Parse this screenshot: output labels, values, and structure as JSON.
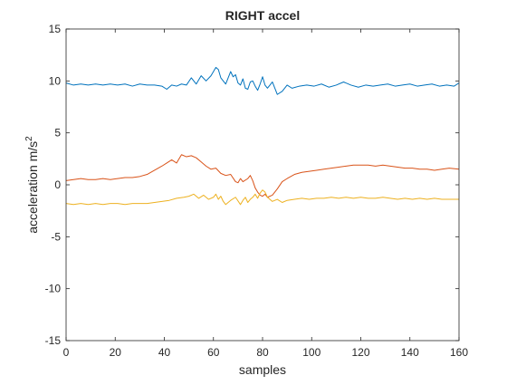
{
  "figure": {
    "background": "#ffffff",
    "axes_background": "#ffffff",
    "axis_color": "#262626",
    "text_color": "#262626"
  },
  "chart_data": {
    "type": "line",
    "title": "RIGHT accel",
    "xlabel": "samples",
    "ylabel_text": "acceleration m/s",
    "ylabel_superscript": "2",
    "xlim": [
      0,
      160
    ],
    "ylim": [
      -15,
      15
    ],
    "xticks": [
      0,
      20,
      40,
      60,
      80,
      100,
      120,
      140,
      160
    ],
    "yticks": [
      -15,
      -10,
      -5,
      0,
      5,
      10,
      15
    ],
    "grid": false,
    "box": true,
    "series": [
      {
        "color": "#0072BD",
        "x": [
          0,
          3,
          6,
          9,
          12,
          15,
          18,
          21,
          24,
          27,
          30,
          33,
          36,
          39,
          41,
          43,
          45,
          47,
          49,
          51,
          53,
          55,
          57,
          59,
          61,
          62,
          63,
          65,
          67,
          68,
          69,
          70,
          71,
          72,
          73,
          74,
          75,
          76,
          77,
          78,
          79,
          80,
          81,
          82,
          83,
          84,
          86,
          88,
          90,
          92,
          95,
          98,
          101,
          104,
          107,
          110,
          113,
          116,
          119,
          122,
          125,
          128,
          131,
          134,
          137,
          140,
          143,
          146,
          149,
          152,
          155,
          158,
          160
        ],
        "y": [
          9.8,
          9.6,
          9.7,
          9.6,
          9.7,
          9.6,
          9.7,
          9.6,
          9.7,
          9.5,
          9.7,
          9.6,
          9.6,
          9.5,
          9.2,
          9.6,
          9.5,
          9.7,
          9.6,
          10.3,
          9.7,
          10.5,
          10.0,
          10.5,
          11.3,
          11.1,
          10.3,
          9.7,
          10.9,
          10.4,
          10.6,
          9.8,
          9.6,
          10.2,
          9.3,
          9.2,
          9.9,
          10.0,
          9.5,
          9.1,
          9.7,
          10.4,
          9.6,
          9.3,
          9.6,
          9.9,
          8.7,
          9.0,
          9.6,
          9.3,
          9.5,
          9.6,
          9.5,
          9.7,
          9.4,
          9.6,
          9.9,
          9.6,
          9.4,
          9.6,
          9.5,
          9.6,
          9.7,
          9.5,
          9.6,
          9.7,
          9.5,
          9.6,
          9.7,
          9.5,
          9.6,
          9.5,
          9.8
        ]
      },
      {
        "color": "#D95319",
        "x": [
          0,
          3,
          6,
          9,
          12,
          15,
          18,
          21,
          24,
          27,
          30,
          33,
          36,
          39,
          41,
          43,
          45,
          47,
          49,
          51,
          53,
          55,
          57,
          59,
          61,
          63,
          65,
          67,
          69,
          70,
          71,
          72,
          74,
          75,
          76,
          77,
          78,
          79,
          80,
          81,
          82,
          84,
          86,
          88,
          90,
          93,
          96,
          99,
          102,
          105,
          108,
          111,
          114,
          117,
          120,
          123,
          126,
          129,
          132,
          135,
          138,
          141,
          144,
          147,
          150,
          153,
          156,
          160
        ],
        "y": [
          0.4,
          0.5,
          0.6,
          0.5,
          0.5,
          0.6,
          0.5,
          0.6,
          0.7,
          0.7,
          0.8,
          1.0,
          1.4,
          1.8,
          2.1,
          2.4,
          2.1,
          2.9,
          2.7,
          2.8,
          2.6,
          2.2,
          1.8,
          1.5,
          1.6,
          1.1,
          0.9,
          1.0,
          0.3,
          0.2,
          0.6,
          0.3,
          0.6,
          0.9,
          0.4,
          -0.3,
          -0.7,
          -1.0,
          -1.1,
          -0.9,
          -1.2,
          -1.0,
          -0.4,
          0.3,
          0.6,
          1.0,
          1.2,
          1.3,
          1.4,
          1.5,
          1.6,
          1.7,
          1.8,
          1.9,
          1.9,
          1.9,
          1.8,
          1.9,
          1.8,
          1.7,
          1.6,
          1.6,
          1.5,
          1.5,
          1.4,
          1.5,
          1.6,
          1.5
        ]
      },
      {
        "color": "#EDB120",
        "x": [
          0,
          3,
          6,
          9,
          12,
          15,
          18,
          21,
          24,
          27,
          30,
          33,
          36,
          39,
          42,
          45,
          48,
          50,
          52,
          54,
          56,
          58,
          60,
          61,
          62,
          63,
          64,
          65,
          67,
          69,
          71,
          72,
          73,
          74,
          75,
          76,
          77,
          78,
          79,
          80,
          81,
          82,
          84,
          86,
          88,
          90,
          93,
          96,
          99,
          102,
          105,
          108,
          111,
          114,
          117,
          120,
          123,
          126,
          129,
          132,
          135,
          138,
          141,
          144,
          147,
          150,
          153,
          156,
          160
        ],
        "y": [
          -1.8,
          -1.9,
          -1.8,
          -1.9,
          -1.8,
          -1.9,
          -1.8,
          -1.8,
          -1.9,
          -1.8,
          -1.8,
          -1.8,
          -1.7,
          -1.6,
          -1.5,
          -1.3,
          -1.2,
          -1.1,
          -0.9,
          -1.3,
          -1.0,
          -1.4,
          -1.2,
          -0.9,
          -1.4,
          -1.1,
          -1.6,
          -1.9,
          -1.5,
          -1.2,
          -1.9,
          -1.5,
          -1.2,
          -1.7,
          -1.4,
          -1.2,
          -0.9,
          -1.3,
          -0.8,
          -0.5,
          -0.7,
          -1.2,
          -1.6,
          -1.4,
          -1.7,
          -1.5,
          -1.4,
          -1.3,
          -1.4,
          -1.3,
          -1.3,
          -1.2,
          -1.3,
          -1.2,
          -1.3,
          -1.2,
          -1.3,
          -1.3,
          -1.2,
          -1.3,
          -1.4,
          -1.3,
          -1.4,
          -1.3,
          -1.4,
          -1.3,
          -1.4,
          -1.4,
          -1.4
        ]
      }
    ]
  }
}
